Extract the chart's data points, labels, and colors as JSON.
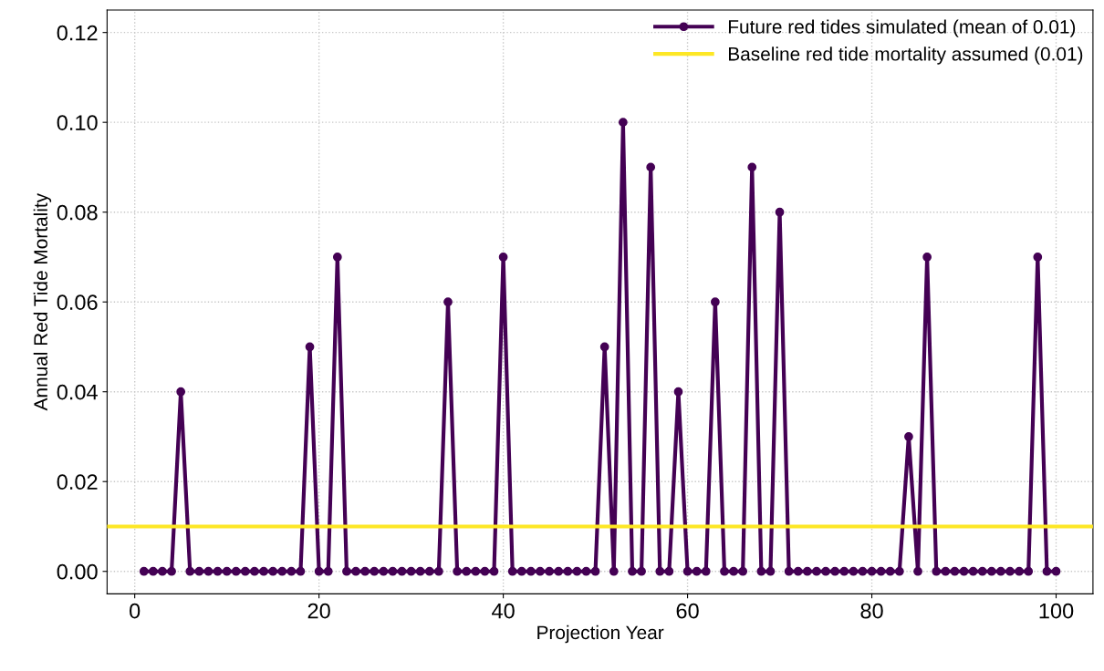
{
  "chart_data": {
    "type": "line",
    "xlabel": "Projection Year",
    "ylabel": "Annual Red Tide Mortality",
    "x": [
      1,
      2,
      3,
      4,
      5,
      6,
      7,
      8,
      9,
      10,
      11,
      12,
      13,
      14,
      15,
      16,
      17,
      18,
      19,
      20,
      21,
      22,
      23,
      24,
      25,
      26,
      27,
      28,
      29,
      30,
      31,
      32,
      33,
      34,
      35,
      36,
      37,
      38,
      39,
      40,
      41,
      42,
      43,
      44,
      45,
      46,
      47,
      48,
      49,
      50,
      51,
      52,
      53,
      54,
      55,
      56,
      57,
      58,
      59,
      60,
      61,
      62,
      63,
      64,
      65,
      66,
      67,
      68,
      69,
      70,
      71,
      72,
      73,
      74,
      75,
      76,
      77,
      78,
      79,
      80,
      81,
      82,
      83,
      84,
      85,
      86,
      87,
      88,
      89,
      90,
      91,
      92,
      93,
      94,
      95,
      96,
      97,
      98,
      99,
      100
    ],
    "series": [
      {
        "name": "Future red tides simulated (mean of 0.01)",
        "color": "#440154",
        "values": [
          0,
          0,
          0,
          0,
          0.04,
          0,
          0,
          0,
          0,
          0,
          0,
          0,
          0,
          0,
          0,
          0,
          0,
          0,
          0.05,
          0,
          0,
          0.07,
          0,
          0,
          0,
          0,
          0,
          0,
          0,
          0,
          0,
          0,
          0,
          0.06,
          0,
          0,
          0,
          0,
          0,
          0.07,
          0,
          0,
          0,
          0,
          0,
          0,
          0,
          0,
          0,
          0,
          0.05,
          0,
          0.1,
          0,
          0,
          0.09,
          0,
          0,
          0.04,
          0,
          0,
          0,
          0.06,
          0,
          0,
          0,
          0.09,
          0,
          0,
          0.08,
          0,
          0,
          0,
          0,
          0,
          0,
          0,
          0,
          0,
          0,
          0,
          0,
          0,
          0.03,
          0,
          0.07,
          0,
          0,
          0,
          0,
          0,
          0,
          0,
          0,
          0,
          0,
          0,
          0.07,
          0,
          0
        ]
      }
    ],
    "ref_lines": [
      {
        "axis": "y",
        "value": 0.01,
        "label": "Baseline red tide mortality assumed (0.01)",
        "color": "#fde725",
        "line_style": "solid"
      }
    ],
    "xlim": [
      -3,
      104
    ],
    "xticks": [
      0,
      20,
      40,
      60,
      80,
      100
    ],
    "ylim": [
      -0.005,
      0.125
    ],
    "yticks": [
      {
        "value": 0,
        "label": "0.00"
      },
      {
        "value": 0.02,
        "label": "0.02"
      },
      {
        "value": 0.04,
        "label": "0.04"
      },
      {
        "value": 0.06,
        "label": "0.06"
      },
      {
        "value": 0.08,
        "label": "0.08"
      },
      {
        "value": 0.1,
        "label": "0.10"
      },
      {
        "value": 0.12,
        "label": "0.12"
      }
    ],
    "grid": true,
    "legend": "top right",
    "marker": "circle",
    "line_style": "solid"
  }
}
